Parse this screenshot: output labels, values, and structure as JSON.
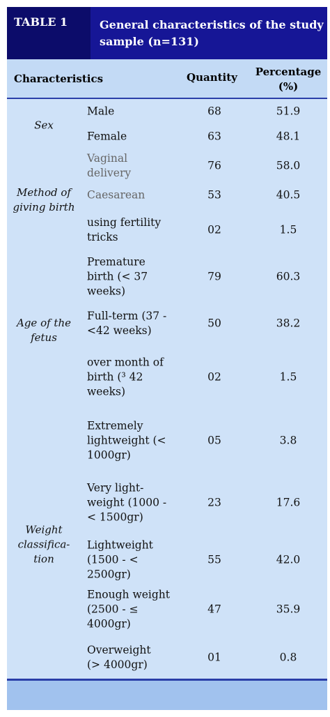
{
  "header": {
    "table_label": "TABLE 1",
    "title": "General characteristics of the study\nsample (n=131)"
  },
  "columns": [
    "Characteristics",
    "Quantity",
    "Percentage\n(%)"
  ],
  "groups": [
    {
      "label": "Sex",
      "rows": [
        {
          "characteristic": "Male",
          "quantity": "68",
          "percentage": "51.9"
        },
        {
          "characteristic": "Female",
          "quantity": "63",
          "percentage": "48.1"
        }
      ]
    },
    {
      "label": "Method of\ngiving birth",
      "rows": [
        {
          "characteristic": "Vaginal\ndelivery",
          "quantity": "76",
          "percentage": "58.0"
        },
        {
          "characteristic": "Caesarean",
          "quantity": "53",
          "percentage": "40.5"
        },
        {
          "characteristic": "using fertility\ntricks",
          "quantity": "02",
          "percentage": "1.5"
        }
      ]
    },
    {
      "label": "Age of the\nfetus",
      "rows": [
        {
          "characteristic": "Premature\nbirth (< 37\nweeks)",
          "quantity": "79",
          "percentage": "60.3"
        },
        {
          "characteristic": "Full-term (37 -\n<42 weeks)",
          "quantity": "50",
          "percentage": "38.2"
        },
        {
          "characteristic": "over month of\nbirth (³ 42\nweeks)",
          "quantity": "02",
          "percentage": "1.5"
        }
      ]
    },
    {
      "label": "Weight\nclassifica-\ntion",
      "rows": [
        {
          "characteristic": "Extremely\nlightweight (<\n1000gr)",
          "quantity": "05",
          "percentage": "3.8"
        },
        {
          "characteristic": "Very light-\nweight (1000 -\n< 1500gr)",
          "quantity": "23",
          "percentage": "17.6"
        },
        {
          "characteristic": "Lightweight\n(1500 - <\n2500gr)",
          "quantity": "55",
          "percentage": "42.0"
        },
        {
          "characteristic": "Enough weight\n(2500 - ≤\n4000gr)",
          "quantity": "47",
          "percentage": "35.9"
        },
        {
          "characteristic": "Overweight\n(> 4000gr)",
          "quantity": "01",
          "percentage": "0.8"
        }
      ]
    }
  ]
}
